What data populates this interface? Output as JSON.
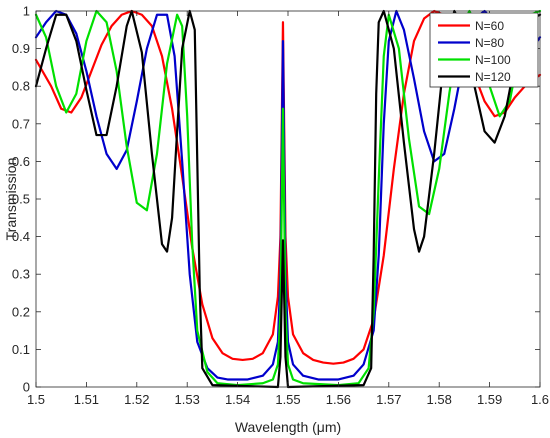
{
  "chart_data": {
    "type": "line",
    "title": "",
    "xlabel": "Wavelength (μm)",
    "ylabel": "Transmission",
    "xlim": [
      1.5,
      1.6
    ],
    "ylim": [
      0,
      1
    ],
    "grid": false,
    "legend_position": "top-right",
    "x_ticks": [
      "1.5",
      "1.51",
      "1.52",
      "1.53",
      "1.54",
      "1.55",
      "1.56",
      "1.57",
      "1.58",
      "1.59",
      "1.6"
    ],
    "y_ticks": [
      "0",
      "0.1",
      "0.2",
      "0.3",
      "0.4",
      "0.5",
      "0.6",
      "0.7",
      "0.8",
      "0.9",
      "1"
    ],
    "series": [
      {
        "name": "N=60",
        "color": "#ff0000",
        "points": [
          [
            1.5,
            0.87
          ],
          [
            1.503,
            0.8
          ],
          [
            1.505,
            0.74
          ],
          [
            1.507,
            0.73
          ],
          [
            1.509,
            0.77
          ],
          [
            1.511,
            0.84
          ],
          [
            1.513,
            0.91
          ],
          [
            1.515,
            0.96
          ],
          [
            1.517,
            0.99
          ],
          [
            1.519,
            1.0
          ],
          [
            1.521,
            0.99
          ],
          [
            1.523,
            0.96
          ],
          [
            1.525,
            0.88
          ],
          [
            1.527,
            0.74
          ],
          [
            1.529,
            0.56
          ],
          [
            1.531,
            0.37
          ],
          [
            1.533,
            0.22
          ],
          [
            1.535,
            0.13
          ],
          [
            1.537,
            0.09
          ],
          [
            1.539,
            0.075
          ],
          [
            1.541,
            0.072
          ],
          [
            1.543,
            0.075
          ],
          [
            1.545,
            0.09
          ],
          [
            1.547,
            0.14
          ],
          [
            1.548,
            0.24
          ],
          [
            1.5485,
            0.4
          ],
          [
            1.549,
            0.97
          ],
          [
            1.5495,
            0.4
          ],
          [
            1.55,
            0.24
          ],
          [
            1.551,
            0.14
          ],
          [
            1.553,
            0.09
          ],
          [
            1.555,
            0.072
          ],
          [
            1.557,
            0.065
          ],
          [
            1.559,
            0.062
          ],
          [
            1.561,
            0.065
          ],
          [
            1.563,
            0.075
          ],
          [
            1.565,
            0.1
          ],
          [
            1.567,
            0.18
          ],
          [
            1.569,
            0.35
          ],
          [
            1.571,
            0.58
          ],
          [
            1.573,
            0.78
          ],
          [
            1.575,
            0.92
          ],
          [
            1.577,
            0.98
          ],
          [
            1.579,
            1.0
          ],
          [
            1.581,
            0.99
          ],
          [
            1.583,
            0.96
          ],
          [
            1.585,
            0.9
          ],
          [
            1.587,
            0.83
          ],
          [
            1.589,
            0.76
          ],
          [
            1.591,
            0.72
          ],
          [
            1.593,
            0.73
          ],
          [
            1.595,
            0.77
          ],
          [
            1.597,
            0.8
          ],
          [
            1.6,
            0.83
          ]
        ]
      },
      {
        "name": "N=80",
        "color": "#0000cc",
        "points": [
          [
            1.5,
            0.93
          ],
          [
            1.502,
            0.97
          ],
          [
            1.504,
            1.0
          ],
          [
            1.506,
            0.99
          ],
          [
            1.508,
            0.94
          ],
          [
            1.51,
            0.84
          ],
          [
            1.512,
            0.72
          ],
          [
            1.514,
            0.62
          ],
          [
            1.516,
            0.58
          ],
          [
            1.518,
            0.63
          ],
          [
            1.52,
            0.76
          ],
          [
            1.522,
            0.9
          ],
          [
            1.524,
            0.99
          ],
          [
            1.526,
            0.99
          ],
          [
            1.5275,
            0.88
          ],
          [
            1.529,
            0.6
          ],
          [
            1.5305,
            0.3
          ],
          [
            1.532,
            0.12
          ],
          [
            1.534,
            0.05
          ],
          [
            1.536,
            0.025
          ],
          [
            1.538,
            0.02
          ],
          [
            1.542,
            0.02
          ],
          [
            1.545,
            0.03
          ],
          [
            1.547,
            0.06
          ],
          [
            1.548,
            0.12
          ],
          [
            1.5485,
            0.3
          ],
          [
            1.549,
            0.92
          ],
          [
            1.5495,
            0.3
          ],
          [
            1.55,
            0.12
          ],
          [
            1.551,
            0.06
          ],
          [
            1.553,
            0.03
          ],
          [
            1.556,
            0.02
          ],
          [
            1.56,
            0.02
          ],
          [
            1.563,
            0.03
          ],
          [
            1.565,
            0.06
          ],
          [
            1.567,
            0.15
          ],
          [
            1.568,
            0.35
          ],
          [
            1.569,
            0.7
          ],
          [
            1.57,
            0.92
          ],
          [
            1.5715,
            1.0
          ],
          [
            1.573,
            0.95
          ],
          [
            1.575,
            0.82
          ],
          [
            1.577,
            0.68
          ],
          [
            1.579,
            0.6
          ],
          [
            1.581,
            0.62
          ],
          [
            1.583,
            0.74
          ],
          [
            1.585,
            0.88
          ],
          [
            1.587,
            0.98
          ],
          [
            1.589,
            1.0
          ],
          [
            1.591,
            0.97
          ],
          [
            1.593,
            0.9
          ],
          [
            1.595,
            0.85
          ],
          [
            1.597,
            0.87
          ],
          [
            1.6,
            0.93
          ]
        ]
      },
      {
        "name": "N=100",
        "color": "#00e000",
        "points": [
          [
            1.5,
            0.99
          ],
          [
            1.502,
            0.93
          ],
          [
            1.504,
            0.8
          ],
          [
            1.506,
            0.73
          ],
          [
            1.508,
            0.78
          ],
          [
            1.51,
            0.92
          ],
          [
            1.512,
            1.0
          ],
          [
            1.514,
            0.97
          ],
          [
            1.516,
            0.84
          ],
          [
            1.518,
            0.64
          ],
          [
            1.52,
            0.49
          ],
          [
            1.522,
            0.47
          ],
          [
            1.524,
            0.62
          ],
          [
            1.526,
            0.86
          ],
          [
            1.528,
            0.99
          ],
          [
            1.529,
            0.96
          ],
          [
            1.53,
            0.72
          ],
          [
            1.531,
            0.38
          ],
          [
            1.532,
            0.15
          ],
          [
            1.534,
            0.04
          ],
          [
            1.536,
            0.01
          ],
          [
            1.54,
            0.005
          ],
          [
            1.545,
            0.01
          ],
          [
            1.547,
            0.02
          ],
          [
            1.548,
            0.06
          ],
          [
            1.5485,
            0.2
          ],
          [
            1.549,
            0.74
          ],
          [
            1.5495,
            0.2
          ],
          [
            1.55,
            0.06
          ],
          [
            1.551,
            0.02
          ],
          [
            1.553,
            0.01
          ],
          [
            1.56,
            0.005
          ],
          [
            1.564,
            0.01
          ],
          [
            1.566,
            0.05
          ],
          [
            1.567,
            0.2
          ],
          [
            1.568,
            0.55
          ],
          [
            1.569,
            0.88
          ],
          [
            1.57,
            0.99
          ],
          [
            1.572,
            0.9
          ],
          [
            1.574,
            0.66
          ],
          [
            1.576,
            0.48
          ],
          [
            1.578,
            0.46
          ],
          [
            1.58,
            0.58
          ],
          [
            1.582,
            0.78
          ],
          [
            1.584,
            0.95
          ],
          [
            1.586,
            1.0
          ],
          [
            1.588,
            0.94
          ],
          [
            1.59,
            0.8
          ],
          [
            1.592,
            0.72
          ],
          [
            1.594,
            0.76
          ],
          [
            1.596,
            0.9
          ],
          [
            1.598,
            0.99
          ],
          [
            1.6,
            1.0
          ]
        ]
      },
      {
        "name": "N=120",
        "color": "#000000",
        "points": [
          [
            1.5,
            0.8
          ],
          [
            1.502,
            0.9
          ],
          [
            1.504,
            0.99
          ],
          [
            1.506,
            0.99
          ],
          [
            1.508,
            0.92
          ],
          [
            1.51,
            0.79
          ],
          [
            1.512,
            0.67
          ],
          [
            1.514,
            0.67
          ],
          [
            1.516,
            0.8
          ],
          [
            1.518,
            0.96
          ],
          [
            1.519,
            1.0
          ],
          [
            1.521,
            0.89
          ],
          [
            1.523,
            0.62
          ],
          [
            1.525,
            0.38
          ],
          [
            1.526,
            0.36
          ],
          [
            1.527,
            0.45
          ],
          [
            1.528,
            0.68
          ],
          [
            1.529,
            0.9
          ],
          [
            1.5305,
            1.0
          ],
          [
            1.5315,
            0.95
          ],
          [
            1.532,
            0.6
          ],
          [
            1.5325,
            0.25
          ],
          [
            1.533,
            0.05
          ],
          [
            1.535,
            0.005
          ],
          [
            1.548,
            0.0
          ],
          [
            1.5485,
            0.08
          ],
          [
            1.549,
            0.39
          ],
          [
            1.5495,
            0.08
          ],
          [
            1.55,
            0.0
          ],
          [
            1.565,
            0.005
          ],
          [
            1.5665,
            0.05
          ],
          [
            1.567,
            0.35
          ],
          [
            1.5675,
            0.78
          ],
          [
            1.568,
            0.97
          ],
          [
            1.569,
            1.0
          ],
          [
            1.571,
            0.9
          ],
          [
            1.573,
            0.65
          ],
          [
            1.575,
            0.42
          ],
          [
            1.576,
            0.36
          ],
          [
            1.577,
            0.4
          ],
          [
            1.579,
            0.62
          ],
          [
            1.581,
            0.88
          ],
          [
            1.583,
            1.0
          ],
          [
            1.585,
            0.95
          ],
          [
            1.587,
            0.8
          ],
          [
            1.589,
            0.68
          ],
          [
            1.591,
            0.65
          ],
          [
            1.593,
            0.72
          ],
          [
            1.595,
            0.86
          ],
          [
            1.597,
            0.97
          ],
          [
            1.6,
            0.99
          ]
        ]
      }
    ]
  }
}
